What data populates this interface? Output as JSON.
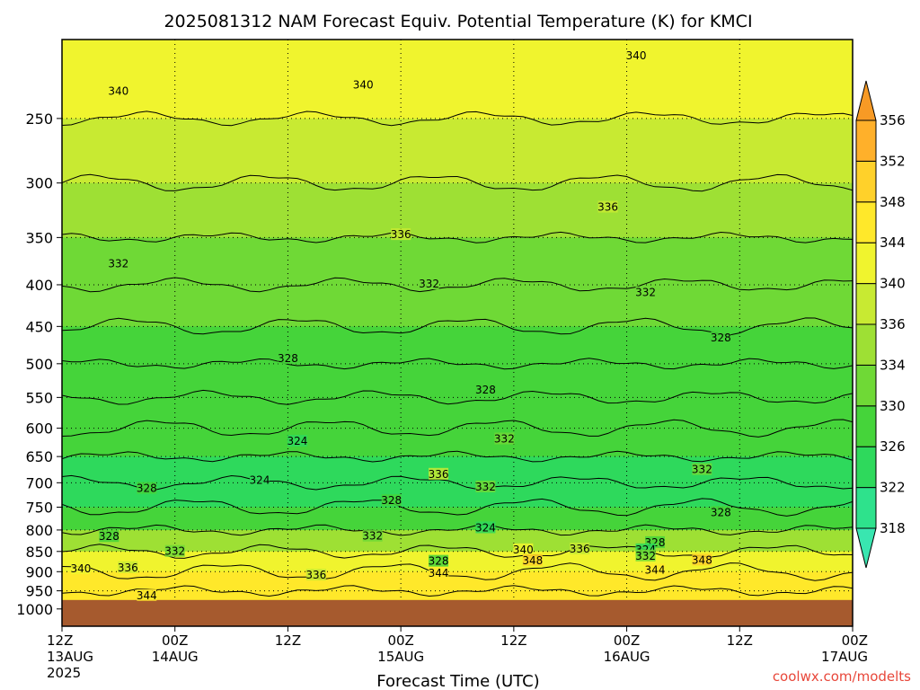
{
  "chart_data": {
    "type": "heatmap",
    "title": "2025081312 NAM Forecast Equiv. Potential Temperature (K) for KMCI",
    "xlabel": "Forecast Time (UTC)",
    "ylabel": "",
    "y_scale": "log-pressure",
    "y_range": [
      1050,
      200
    ],
    "y_ticks": [
      250,
      300,
      350,
      400,
      450,
      500,
      550,
      600,
      650,
      700,
      750,
      800,
      850,
      900,
      950,
      1000
    ],
    "x_ticks": [
      {
        "hour": 0,
        "label": "12Z",
        "sub": "13AUG",
        "sub2": "2025"
      },
      {
        "hour": 12,
        "label": "00Z",
        "sub": "14AUG",
        "sub2": ""
      },
      {
        "hour": 24,
        "label": "12Z",
        "sub": "",
        "sub2": ""
      },
      {
        "hour": 36,
        "label": "00Z",
        "sub": "15AUG",
        "sub2": ""
      },
      {
        "hour": 48,
        "label": "12Z",
        "sub": "",
        "sub2": ""
      },
      {
        "hour": 60,
        "label": "00Z",
        "sub": "16AUG",
        "sub2": ""
      },
      {
        "hour": 72,
        "label": "12Z",
        "sub": "",
        "sub2": ""
      },
      {
        "hour": 84,
        "label": "00Z",
        "sub": "17AUG",
        "sub2": ""
      }
    ],
    "colorbar": {
      "labels": [
        318,
        322,
        326,
        330,
        334,
        336,
        340,
        344,
        348,
        352,
        356
      ],
      "colors": [
        "#39e6b0",
        "#2ee28c",
        "#2ed95c",
        "#45d43a",
        "#6fd936",
        "#9ee034",
        "#c8ea32",
        "#f0f42e",
        "#ffe82a",
        "#ffd12a",
        "#ffb02a",
        "#f79a25"
      ]
    },
    "ground_pressure": 975,
    "ground_color": "#a65a2e",
    "pressure_profile": [
      {
        "p": 200,
        "theta": 343
      },
      {
        "p": 250,
        "theta": 338
      },
      {
        "p": 300,
        "theta": 336
      },
      {
        "p": 350,
        "theta": 334
      },
      {
        "p": 400,
        "theta": 332
      },
      {
        "p": 450,
        "theta": 330
      },
      {
        "p": 500,
        "theta": 328
      },
      {
        "p": 550,
        "theta": 328
      },
      {
        "p": 600,
        "theta": 327
      },
      {
        "p": 650,
        "theta": 326
      },
      {
        "p": 700,
        "theta": 325
      },
      {
        "p": 750,
        "theta": 326
      },
      {
        "p": 800,
        "theta": 330
      },
      {
        "p": 850,
        "theta": 338
      },
      {
        "p": 900,
        "theta": 344
      },
      {
        "p": 950,
        "theta": 345
      },
      {
        "p": 1000,
        "theta": 346
      }
    ],
    "contour_labels": [
      {
        "t": 61,
        "p": 210,
        "text": "340"
      },
      {
        "t": 32,
        "p": 228,
        "text": "340"
      },
      {
        "t": 6,
        "p": 232,
        "text": "340"
      },
      {
        "t": 58,
        "p": 322,
        "text": "336"
      },
      {
        "t": 36,
        "p": 348,
        "text": "336"
      },
      {
        "t": 6,
        "p": 378,
        "text": "332"
      },
      {
        "t": 39,
        "p": 400,
        "text": "332"
      },
      {
        "t": 62,
        "p": 410,
        "text": "332"
      },
      {
        "t": 70,
        "p": 466,
        "text": "328"
      },
      {
        "t": 24,
        "p": 494,
        "text": "328"
      },
      {
        "t": 45,
        "p": 540,
        "text": "328"
      },
      {
        "t": 47,
        "p": 620,
        "text": "332"
      },
      {
        "t": 25,
        "p": 624,
        "text": "324"
      },
      {
        "t": 40,
        "p": 685,
        "text": "336"
      },
      {
        "t": 68,
        "p": 676,
        "text": "332"
      },
      {
        "t": 21,
        "p": 697,
        "text": "324"
      },
      {
        "t": 9,
        "p": 713,
        "text": "328"
      },
      {
        "t": 45,
        "p": 710,
        "text": "332"
      },
      {
        "t": 35,
        "p": 738,
        "text": "328"
      },
      {
        "t": 70,
        "p": 763,
        "text": "328"
      },
      {
        "t": 45,
        "p": 797,
        "text": "324"
      },
      {
        "t": 33,
        "p": 816,
        "text": "332"
      },
      {
        "t": 5,
        "p": 817,
        "text": "328"
      },
      {
        "t": 63,
        "p": 831,
        "text": "328"
      },
      {
        "t": 49,
        "p": 848,
        "text": "340"
      },
      {
        "t": 55,
        "p": 846,
        "text": "336"
      },
      {
        "t": 12,
        "p": 852,
        "text": "332"
      },
      {
        "t": 62,
        "p": 848,
        "text": "324"
      },
      {
        "t": 62,
        "p": 863,
        "text": "332"
      },
      {
        "t": 68,
        "p": 873,
        "text": "348"
      },
      {
        "t": 50,
        "p": 874,
        "text": "348"
      },
      {
        "t": 40,
        "p": 876,
        "text": "328"
      },
      {
        "t": 7,
        "p": 892,
        "text": "336"
      },
      {
        "t": 2,
        "p": 895,
        "text": "340"
      },
      {
        "t": 40,
        "p": 906,
        "text": "344"
      },
      {
        "t": 63,
        "p": 898,
        "text": "344"
      },
      {
        "t": 27,
        "p": 911,
        "text": "336"
      },
      {
        "t": 9,
        "p": 965,
        "text": "344"
      }
    ],
    "credit": "coolwx.com/modelts"
  }
}
